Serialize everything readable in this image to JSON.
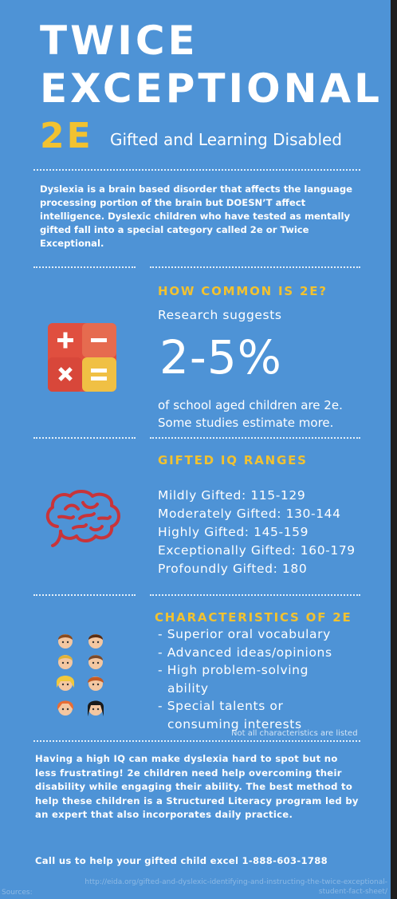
{
  "title": {
    "line1": "TWICE",
    "line2": "EXCEPTIONAL",
    "abbr": "2E",
    "subtitle": "Gifted and Learning Disabled"
  },
  "intro": "Dyslexia is a brain based disorder that affects the language processing portion of the brain but DOESN’T affect intelligence. Dyslexic children who have tested as mentally gifted fall into a special category called 2e or Twice Exceptional.",
  "common": {
    "heading": "HOW COMMON IS 2E?",
    "lead": "Research suggests",
    "stat": "2-5%",
    "line1": "of school aged children are 2e.",
    "line2": "Some studies estimate more.",
    "icon": "calculator-icon"
  },
  "iq": {
    "heading": "GIFTED IQ RANGES",
    "icon": "brain-icon",
    "ranges": [
      "Mildly Gifted: 115-129",
      "Moderately Gifted: 130-144",
      "Highly Gifted: 145-159",
      "Exceptionally Gifted: 160-179",
      "Profoundly Gifted: 180"
    ]
  },
  "characteristics": {
    "heading": "CHARACTERISTICS OF 2E",
    "icon": "children-faces-icon",
    "items": [
      "- Superior oral vocabulary",
      "- Advanced ideas/opinions",
      "- High problem-solving",
      "  ability",
      "- Special talents or",
      "  consuming interests"
    ],
    "note": "Not all characteristics are listed"
  },
  "closing": "Having a high IQ can make dyslexia hard to spot but no less frustrating! 2e children need help overcoming their disability while engaging their ability. The best method to help these children is a Structured Literacy program led by an expert that also incorporates daily practice.",
  "cta": "Call us to help your gifted child excel 1-888-603-1788",
  "sources": {
    "label": "Sources:",
    "url1": "http://eida.org/gifted-and-dyslexic-identifying-and-instructing-the-twice-exceptional-",
    "url2": "student-fact-sheet/"
  },
  "colors": {
    "background": "#4e93d6",
    "accent": "#f2c230",
    "icon_red": "#d9534f",
    "brain_red": "#c8343a"
  }
}
